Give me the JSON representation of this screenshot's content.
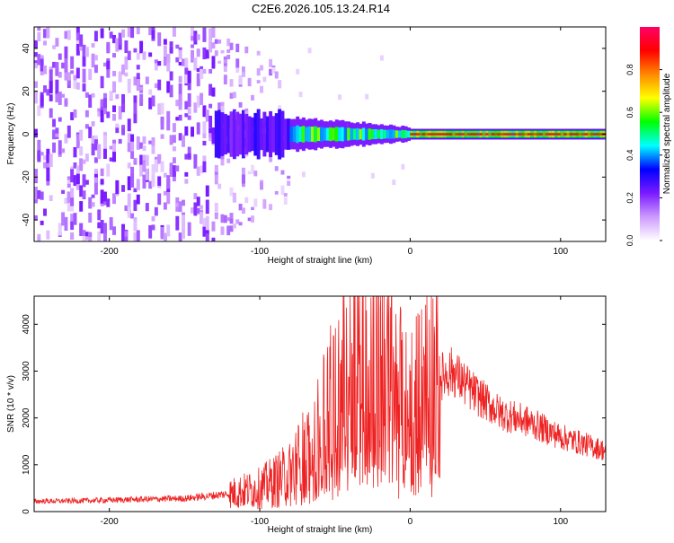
{
  "title": "C2E6.2026.105.13.24.R14",
  "colors": {
    "snr_line": "#ee2222",
    "frame": "#000000"
  },
  "chart_data": [
    {
      "type": "heatmap",
      "xlabel": "Height of straight line (km)",
      "ylabel": "Frequency (Hz)",
      "xlim": [
        -250,
        130
      ],
      "ylim": [
        -50,
        50
      ],
      "x_ticks": [
        -200,
        -100,
        0,
        100
      ],
      "x_tick_labels": [
        "-200",
        "-100",
        "0",
        "100"
      ],
      "y_ticks": [
        -40,
        -20,
        0,
        20,
        40
      ],
      "y_tick_labels": [
        "-40",
        "-20",
        "0",
        "20",
        "40"
      ],
      "colorbar": {
        "label": "Normalized spectral amplitude",
        "range": [
          0,
          1
        ],
        "ticks": [
          0,
          0.2,
          0.4,
          0.6,
          0.8
        ],
        "tick_labels": [
          "0.0",
          "0.2",
          "0.4",
          "0.6",
          "0.8"
        ],
        "colormap": [
          "#ffffff",
          "#cc99ff",
          "#7a1aff",
          "#0000ff",
          "#00ffff",
          "#00ff00",
          "#ffff00",
          "#ff8800",
          "#ff0000",
          "#ff0066"
        ]
      },
      "regions": [
        {
          "x_range": [
            -250,
            -130
          ],
          "description": "broadband noise",
          "amplitude": 0.15
        },
        {
          "x_range": [
            -130,
            -80
          ],
          "description": "transition",
          "amplitude": 0.25
        },
        {
          "x_range": [
            -80,
            0
          ],
          "description": "signal band near 0 Hz",
          "amplitude": 0.45
        },
        {
          "x_range": [
            0,
            130
          ],
          "description": "narrow line at 0 Hz",
          "amplitude": 0.9
        }
      ]
    },
    {
      "type": "line",
      "xlabel": "Height of straight line (km)",
      "ylabel": "SNR (10 * v/v)",
      "xlim": [
        -250,
        130
      ],
      "ylim": [
        0,
        4600
      ],
      "x_ticks": [
        -200,
        -100,
        0,
        100
      ],
      "x_tick_labels": [
        "-200",
        "-100",
        "0",
        "100"
      ],
      "y_ticks": [
        0,
        1000,
        2000,
        3000,
        4000
      ],
      "y_tick_labels": [
        "0",
        "1000",
        "2000",
        "3000",
        "4000"
      ],
      "series": [
        {
          "name": "SNR",
          "x": [
            -250,
            -220,
            -180,
            -150,
            -120,
            -100,
            -80,
            -60,
            -50,
            -40,
            -33,
            -25,
            -15,
            -5,
            5,
            15,
            28,
            40,
            60,
            80,
            100,
            130
          ],
          "y": [
            220,
            230,
            260,
            280,
            380,
            500,
            800,
            1600,
            2300,
            2900,
            3800,
            3300,
            3100,
            2300,
            2300,
            2800,
            3000,
            2600,
            2100,
            1900,
            1600,
            1300
          ]
        }
      ]
    }
  ]
}
